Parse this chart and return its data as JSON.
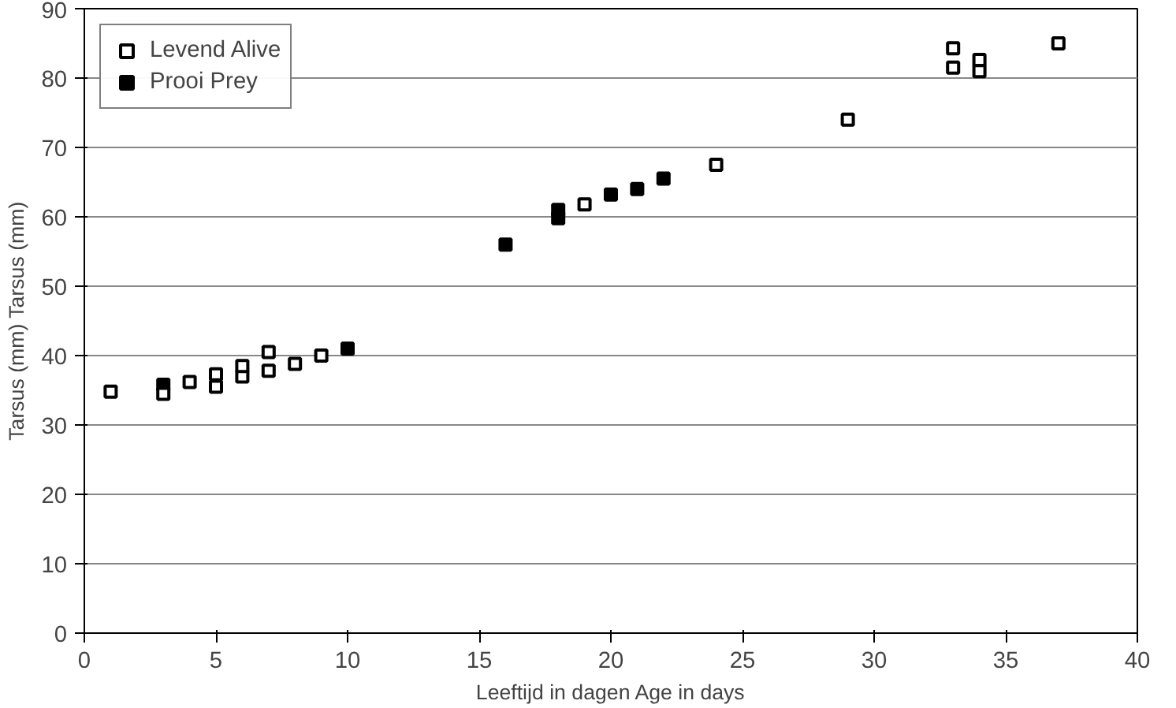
{
  "chart_data": {
    "type": "scatter",
    "xlabel": "Leeftijd in dagen Age in days",
    "ylabel": "Tarsus (mm) Tarsus (mm)",
    "xlim": [
      0,
      40
    ],
    "ylim": [
      0,
      90
    ],
    "xticks": [
      0,
      5,
      10,
      15,
      20,
      25,
      30,
      35,
      40
    ],
    "yticks": [
      0,
      10,
      20,
      30,
      40,
      50,
      60,
      70,
      80,
      90
    ],
    "grid": "y",
    "legend": "top left",
    "marker": "square",
    "series": [
      {
        "name": "Levend Alive",
        "color": "#ffffff",
        "x": [
          1,
          3,
          4,
          5,
          5,
          6,
          6,
          7,
          7,
          8,
          9,
          19,
          24,
          29,
          33,
          33,
          34,
          34,
          37
        ],
        "values": [
          34.8,
          34.5,
          36.2,
          37.3,
          35.5,
          37,
          38.5,
          37.8,
          40.5,
          38.8,
          40,
          61.8,
          67.5,
          74,
          84.3,
          81.5,
          82.6,
          81,
          85
        ]
      },
      {
        "name": "Prooi Prey",
        "color": "#000000",
        "x": [
          3,
          10,
          16,
          18,
          18,
          20,
          21,
          22
        ],
        "values": [
          35.8,
          41,
          56,
          61,
          59.8,
          63.2,
          64,
          65.5
        ]
      }
    ]
  }
}
